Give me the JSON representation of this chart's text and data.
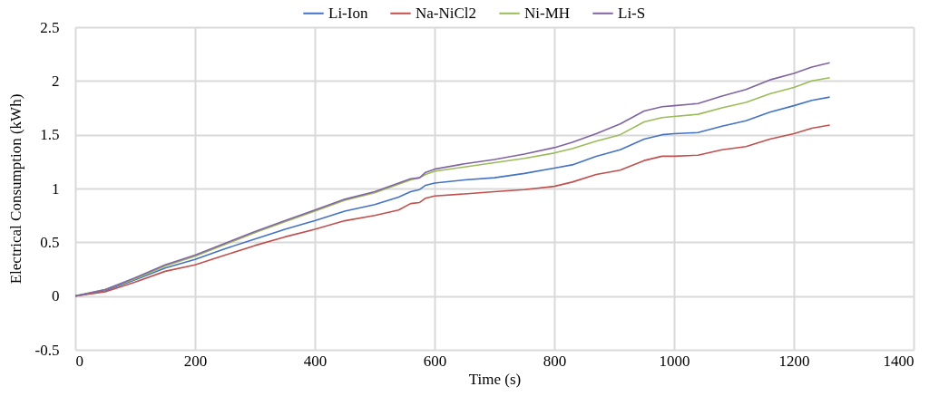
{
  "chart_data": {
    "type": "line",
    "xlabel": "Time (s)",
    "ylabel": "Electrical Consumption (kWh)",
    "x": [
      0,
      50,
      100,
      150,
      200,
      250,
      300,
      350,
      400,
      450,
      500,
      540,
      560,
      575,
      585,
      600,
      650,
      700,
      750,
      800,
      830,
      870,
      910,
      950,
      980,
      1000,
      1040,
      1080,
      1120,
      1160,
      1200,
      1230,
      1260
    ],
    "series": [
      {
        "name": "Li-Ion",
        "color": "#4472c4",
        "values": [
          0,
          0.05,
          0.15,
          0.26,
          0.34,
          0.44,
          0.53,
          0.62,
          0.7,
          0.79,
          0.85,
          0.92,
          0.97,
          0.99,
          1.03,
          1.05,
          1.08,
          1.1,
          1.14,
          1.19,
          1.22,
          1.3,
          1.36,
          1.46,
          1.5,
          1.51,
          1.52,
          1.58,
          1.63,
          1.71,
          1.77,
          1.82,
          1.85
        ]
      },
      {
        "name": "Na-NiCl2",
        "color": "#c0504d",
        "values": [
          0,
          0.04,
          0.13,
          0.23,
          0.29,
          0.38,
          0.47,
          0.55,
          0.62,
          0.7,
          0.75,
          0.8,
          0.86,
          0.87,
          0.91,
          0.93,
          0.95,
          0.97,
          0.99,
          1.02,
          1.06,
          1.13,
          1.17,
          1.26,
          1.3,
          1.3,
          1.31,
          1.36,
          1.39,
          1.46,
          1.51,
          1.56,
          1.59
        ]
      },
      {
        "name": "Ni-MH",
        "color": "#9bbb59",
        "values": [
          0,
          0.06,
          0.16,
          0.28,
          0.37,
          0.48,
          0.59,
          0.69,
          0.79,
          0.89,
          0.96,
          1.04,
          1.08,
          1.1,
          1.13,
          1.16,
          1.2,
          1.24,
          1.28,
          1.33,
          1.37,
          1.44,
          1.5,
          1.62,
          1.66,
          1.67,
          1.69,
          1.75,
          1.8,
          1.88,
          1.94,
          2,
          2.03
        ]
      },
      {
        "name": "Li-S",
        "color": "#8064a2",
        "values": [
          0,
          0.06,
          0.17,
          0.29,
          0.38,
          0.49,
          0.6,
          0.7,
          0.8,
          0.9,
          0.97,
          1.05,
          1.09,
          1.1,
          1.15,
          1.18,
          1.23,
          1.27,
          1.32,
          1.38,
          1.43,
          1.51,
          1.6,
          1.72,
          1.76,
          1.77,
          1.79,
          1.86,
          1.92,
          2.01,
          2.07,
          2.13,
          2.17
        ]
      }
    ],
    "xlim": [
      0,
      1400
    ],
    "xticks": [
      0,
      200,
      400,
      600,
      800,
      1000,
      1200,
      1400
    ],
    "ylim": [
      -0.5,
      2.5
    ],
    "yticks": [
      -0.5,
      0,
      0.5,
      1,
      1.5,
      2,
      2.5
    ],
    "grid": true,
    "legend": "top",
    "marker": "none",
    "line_style": "solid"
  }
}
